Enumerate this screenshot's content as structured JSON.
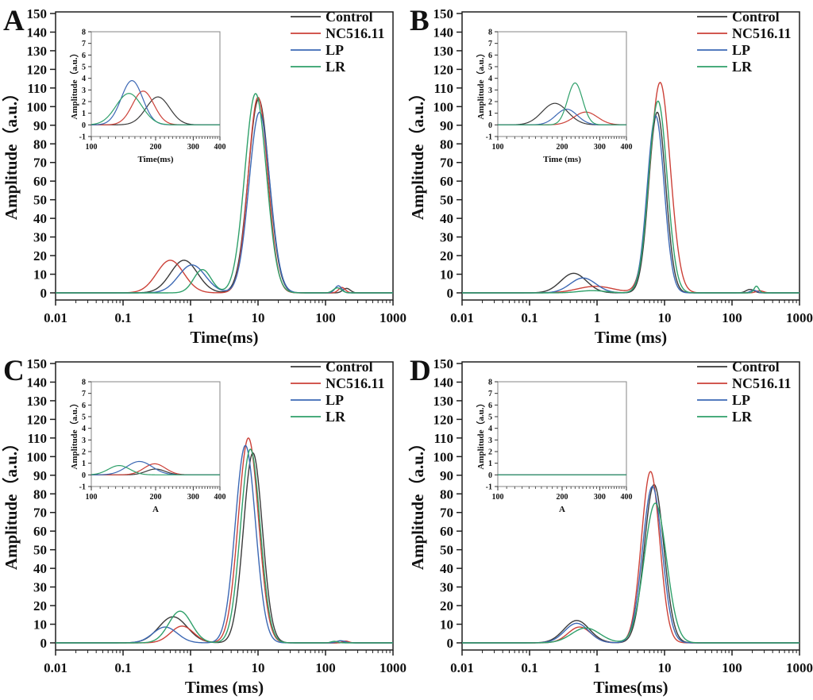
{
  "figure": {
    "background": "#ffffff",
    "frame_color": "#1f1f1f",
    "inset_frame_color": "#8f8f8f",
    "peak_format": "[center_time_ms, amplitude_au, sigma_log10_decades]"
  },
  "legend": {
    "position": "top-right",
    "items": [
      {
        "label": "Control",
        "color": "#3a3a3a"
      },
      {
        "label": "NC516.11",
        "color": "#cc4138"
      },
      {
        "label": "LP",
        "color": "#3c68b4"
      },
      {
        "label": "LR",
        "color": "#2fa06a"
      }
    ]
  },
  "chart_data": [
    {
      "panel_label": "A",
      "type": "line",
      "xscale": "log",
      "xlabel": "Time(ms)",
      "ylabel": "Amplitude（a.u.）",
      "xlim": [
        0.01,
        1000
      ],
      "ylim": [
        0,
        150
      ],
      "xticks": [
        "0.01",
        "0.1",
        "1",
        "10",
        "100",
        "1000"
      ],
      "yticks": [
        0,
        10,
        20,
        30,
        40,
        50,
        60,
        70,
        80,
        90,
        100,
        110,
        120,
        130,
        140,
        150
      ],
      "series": [
        {
          "name": "Control",
          "color": "#3a3a3a",
          "peaks": [
            [
              0.8,
              17.5,
              0.2
            ],
            [
              10.2,
              104,
              0.155
            ],
            [
              205,
              2.4,
              0.055
            ]
          ]
        },
        {
          "name": "NC516.11",
          "color": "#cc4138",
          "peaks": [
            [
              0.5,
              17.5,
              0.2
            ],
            [
              10.0,
              105,
              0.145
            ],
            [
              175,
              2.9,
              0.05
            ]
          ]
        },
        {
          "name": "LP",
          "color": "#3c68b4",
          "peaks": [
            [
              1.05,
              15,
              0.2
            ],
            [
              10.5,
              97,
              0.155
            ],
            [
              155,
              3.8,
              0.05
            ]
          ]
        },
        {
          "name": "LR",
          "color": "#2fa06a",
          "peaks": [
            [
              1.5,
              12.5,
              0.13
            ],
            [
              9.2,
              107,
              0.16
            ],
            [
              150,
              2.7,
              0.06
            ]
          ]
        }
      ],
      "inset": {
        "xlabel": "Time(ms)",
        "ylabel": "Amplitude（a.u.）",
        "xscale": "log",
        "xlim": [
          100,
          400
        ],
        "ylim": [
          -1,
          8
        ],
        "xticks": [
          "100",
          "200",
          "300",
          "400"
        ],
        "yticks": [
          -1,
          0,
          1,
          2,
          3,
          4,
          5,
          6,
          7,
          8
        ]
      }
    },
    {
      "panel_label": "B",
      "type": "line",
      "xscale": "log",
      "xlabel": "Time (ms)",
      "ylabel": "Amplitude（a.u.）",
      "xlim": [
        0.01,
        1000
      ],
      "ylim": [
        0,
        150
      ],
      "xticks": [
        "0.01",
        "0.1",
        "1",
        "10",
        "100",
        "1000"
      ],
      "yticks": [
        0,
        10,
        20,
        30,
        40,
        50,
        60,
        70,
        80,
        90,
        100,
        110,
        120,
        130,
        140,
        150
      ],
      "series": [
        {
          "name": "Control",
          "color": "#3a3a3a",
          "peaks": [
            [
              0.45,
              10.5,
              0.19
            ],
            [
              7.8,
              97,
              0.125
            ],
            [
              185,
              1.85,
              0.06
            ]
          ]
        },
        {
          "name": "NC516.11",
          "color": "#cc4138",
          "peaks": [
            [
              0.95,
              3.5,
              0.27
            ],
            [
              8.6,
              113,
              0.15
            ],
            [
              258,
              1.1,
              0.055
            ]
          ]
        },
        {
          "name": "LP",
          "color": "#3c68b4",
          "peaks": [
            [
              0.62,
              8.0,
              0.19
            ],
            [
              7.4,
              95,
              0.125
            ],
            [
              210,
              1.35,
              0.05
            ]
          ]
        },
        {
          "name": "LR",
          "color": "#2fa06a",
          "peaks": [
            [
              0.85,
              1.2,
              0.2
            ],
            [
              8.0,
              103,
              0.135
            ],
            [
              230,
              3.6,
              0.035
            ]
          ]
        }
      ],
      "inset": {
        "xlabel": "Time (ms)",
        "ylabel": "Amplitude（a.u.）",
        "xscale": "log",
        "xlim": [
          100,
          400
        ],
        "ylim": [
          -1,
          8
        ],
        "xticks": [
          "100",
          "200",
          "300",
          "400"
        ],
        "yticks": [
          -1,
          0,
          1,
          2,
          3,
          4,
          5,
          6,
          7,
          8
        ]
      }
    },
    {
      "panel_label": "C",
      "type": "line",
      "xscale": "log",
      "xlabel": "Times (ms)",
      "ylabel": "Amplitude（a.u.）",
      "xlim": [
        0.01,
        1000
      ],
      "ylim": [
        0,
        150
      ],
      "xticks": [
        "0.01",
        "0.1",
        "1",
        "10",
        "100",
        "1000"
      ],
      "yticks": [
        0,
        10,
        20,
        30,
        40,
        50,
        60,
        70,
        80,
        90,
        100,
        110,
        120,
        130,
        140,
        150
      ],
      "series": [
        {
          "name": "Control",
          "color": "#3a3a3a",
          "peaks": [
            [
              0.55,
              14,
              0.21
            ],
            [
              8.4,
              102,
              0.14
            ],
            [
              200,
              0.5,
              0.045
            ]
          ]
        },
        {
          "name": "NC516.11",
          "color": "#cc4138",
          "peaks": [
            [
              0.75,
              9,
              0.17
            ],
            [
              7.2,
              110,
              0.15
            ],
            [
              198,
              0.95,
              0.05
            ]
          ]
        },
        {
          "name": "LP",
          "color": "#3c68b4",
          "peaks": [
            [
              0.42,
              8.5,
              0.18
            ],
            [
              6.5,
              106,
              0.15
            ],
            [
              168,
              1.15,
              0.06
            ]
          ]
        },
        {
          "name": "LR",
          "color": "#2fa06a",
          "peaks": [
            [
              0.7,
              17,
              0.17
            ],
            [
              7.7,
              104,
              0.145
            ],
            [
              135,
              0.8,
              0.05
            ]
          ]
        }
      ],
      "inset": {
        "xlabel": "A",
        "ylabel": "Amplitude（a.u.）",
        "xscale": "log",
        "xlim": [
          100,
          400
        ],
        "ylim": [
          -1,
          8
        ],
        "xticks": [
          "100",
          "200",
          "300",
          "400"
        ],
        "yticks": [
          -1,
          0,
          1,
          2,
          3,
          4,
          5,
          6,
          7,
          8
        ]
      }
    },
    {
      "panel_label": "D",
      "type": "line",
      "xscale": "log",
      "xlabel": "Times(ms)",
      "ylabel": "Amplitude（a.u.）",
      "xlim": [
        0.01,
        1000
      ],
      "ylim": [
        0,
        150
      ],
      "xticks": [
        "0.01",
        "0.1",
        "1",
        "10",
        "100",
        "1000"
      ],
      "yticks": [
        0,
        10,
        20,
        30,
        40,
        50,
        60,
        70,
        80,
        90,
        100,
        110,
        120,
        130,
        140,
        150
      ],
      "series": [
        {
          "name": "Control",
          "color": "#3a3a3a",
          "peaks": [
            [
              0.5,
              12,
              0.19
            ],
            [
              7.0,
              85,
              0.145
            ]
          ]
        },
        {
          "name": "NC516.11",
          "color": "#cc4138",
          "peaks": [
            [
              0.55,
              8.5,
              0.17
            ],
            [
              6.2,
              92,
              0.135
            ]
          ]
        },
        {
          "name": "LP",
          "color": "#3c68b4",
          "peaks": [
            [
              0.5,
              10.5,
              0.18
            ],
            [
              6.6,
              84,
              0.145
            ]
          ]
        },
        {
          "name": "LR",
          "color": "#2fa06a",
          "peaks": [
            [
              0.68,
              8.0,
              0.21
            ],
            [
              7.3,
              75,
              0.165
            ]
          ]
        }
      ],
      "inset": {
        "xlabel": "A",
        "ylabel": "Amplitude（a.u.）",
        "xscale": "log",
        "xlim": [
          100,
          400
        ],
        "ylim": [
          -1,
          8
        ],
        "xticks": [
          "100",
          "200",
          "300",
          "400"
        ],
        "yticks": [
          -1,
          0,
          1,
          2,
          3,
          4,
          5,
          6,
          7,
          8
        ]
      }
    }
  ]
}
